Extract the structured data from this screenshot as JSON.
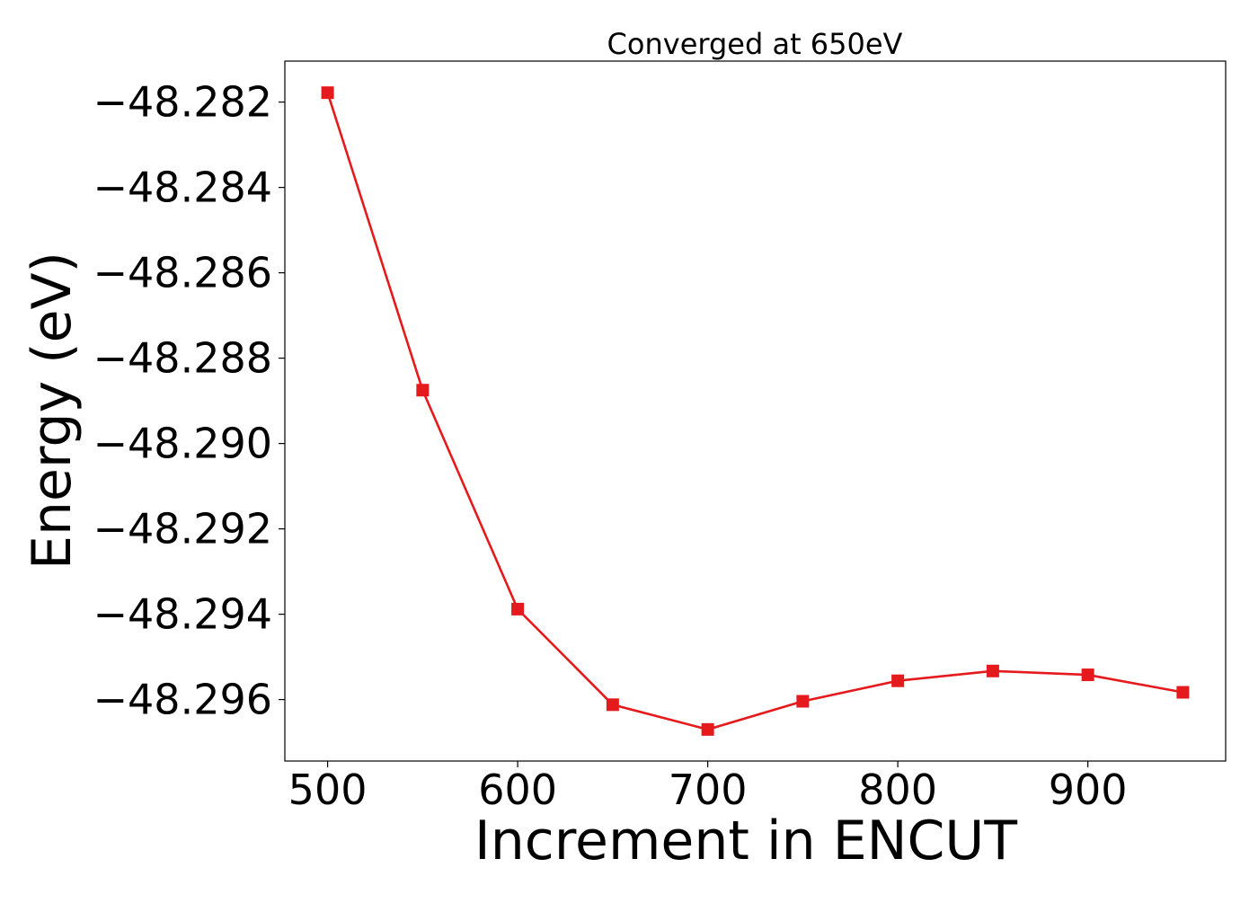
{
  "chart_data": {
    "type": "line",
    "title": "Converged at 650eV",
    "xlabel": "Increment in ENCUT",
    "ylabel": "Energy (eV)",
    "x": [
      500,
      550,
      600,
      650,
      700,
      750,
      800,
      850,
      900,
      950
    ],
    "series": [
      {
        "values": [
          -48.28178,
          -48.28875,
          -48.29388,
          -48.29612,
          -48.2967,
          -48.29604,
          -48.29556,
          -48.29533,
          -48.29542,
          -48.29583
        ],
        "color": "#e41a1c",
        "marker": "square"
      }
    ],
    "xlim": [
      477.5,
      972.5
    ],
    "ylim": [
      -48.29744,
      -48.28104
    ],
    "xticks": [
      500,
      600,
      700,
      800,
      900
    ],
    "yticks": [
      -48.282,
      -48.284,
      -48.286,
      -48.288,
      -48.29,
      -48.292,
      -48.294,
      -48.296
    ],
    "xtick_labels": [
      "500",
      "600",
      "700",
      "800",
      "900"
    ],
    "ytick_labels": [
      "−48.282",
      "−48.284",
      "−48.286",
      "−48.288",
      "−48.290",
      "−48.292",
      "−48.294",
      "−48.296"
    ],
    "grid": false,
    "legend": "none"
  }
}
